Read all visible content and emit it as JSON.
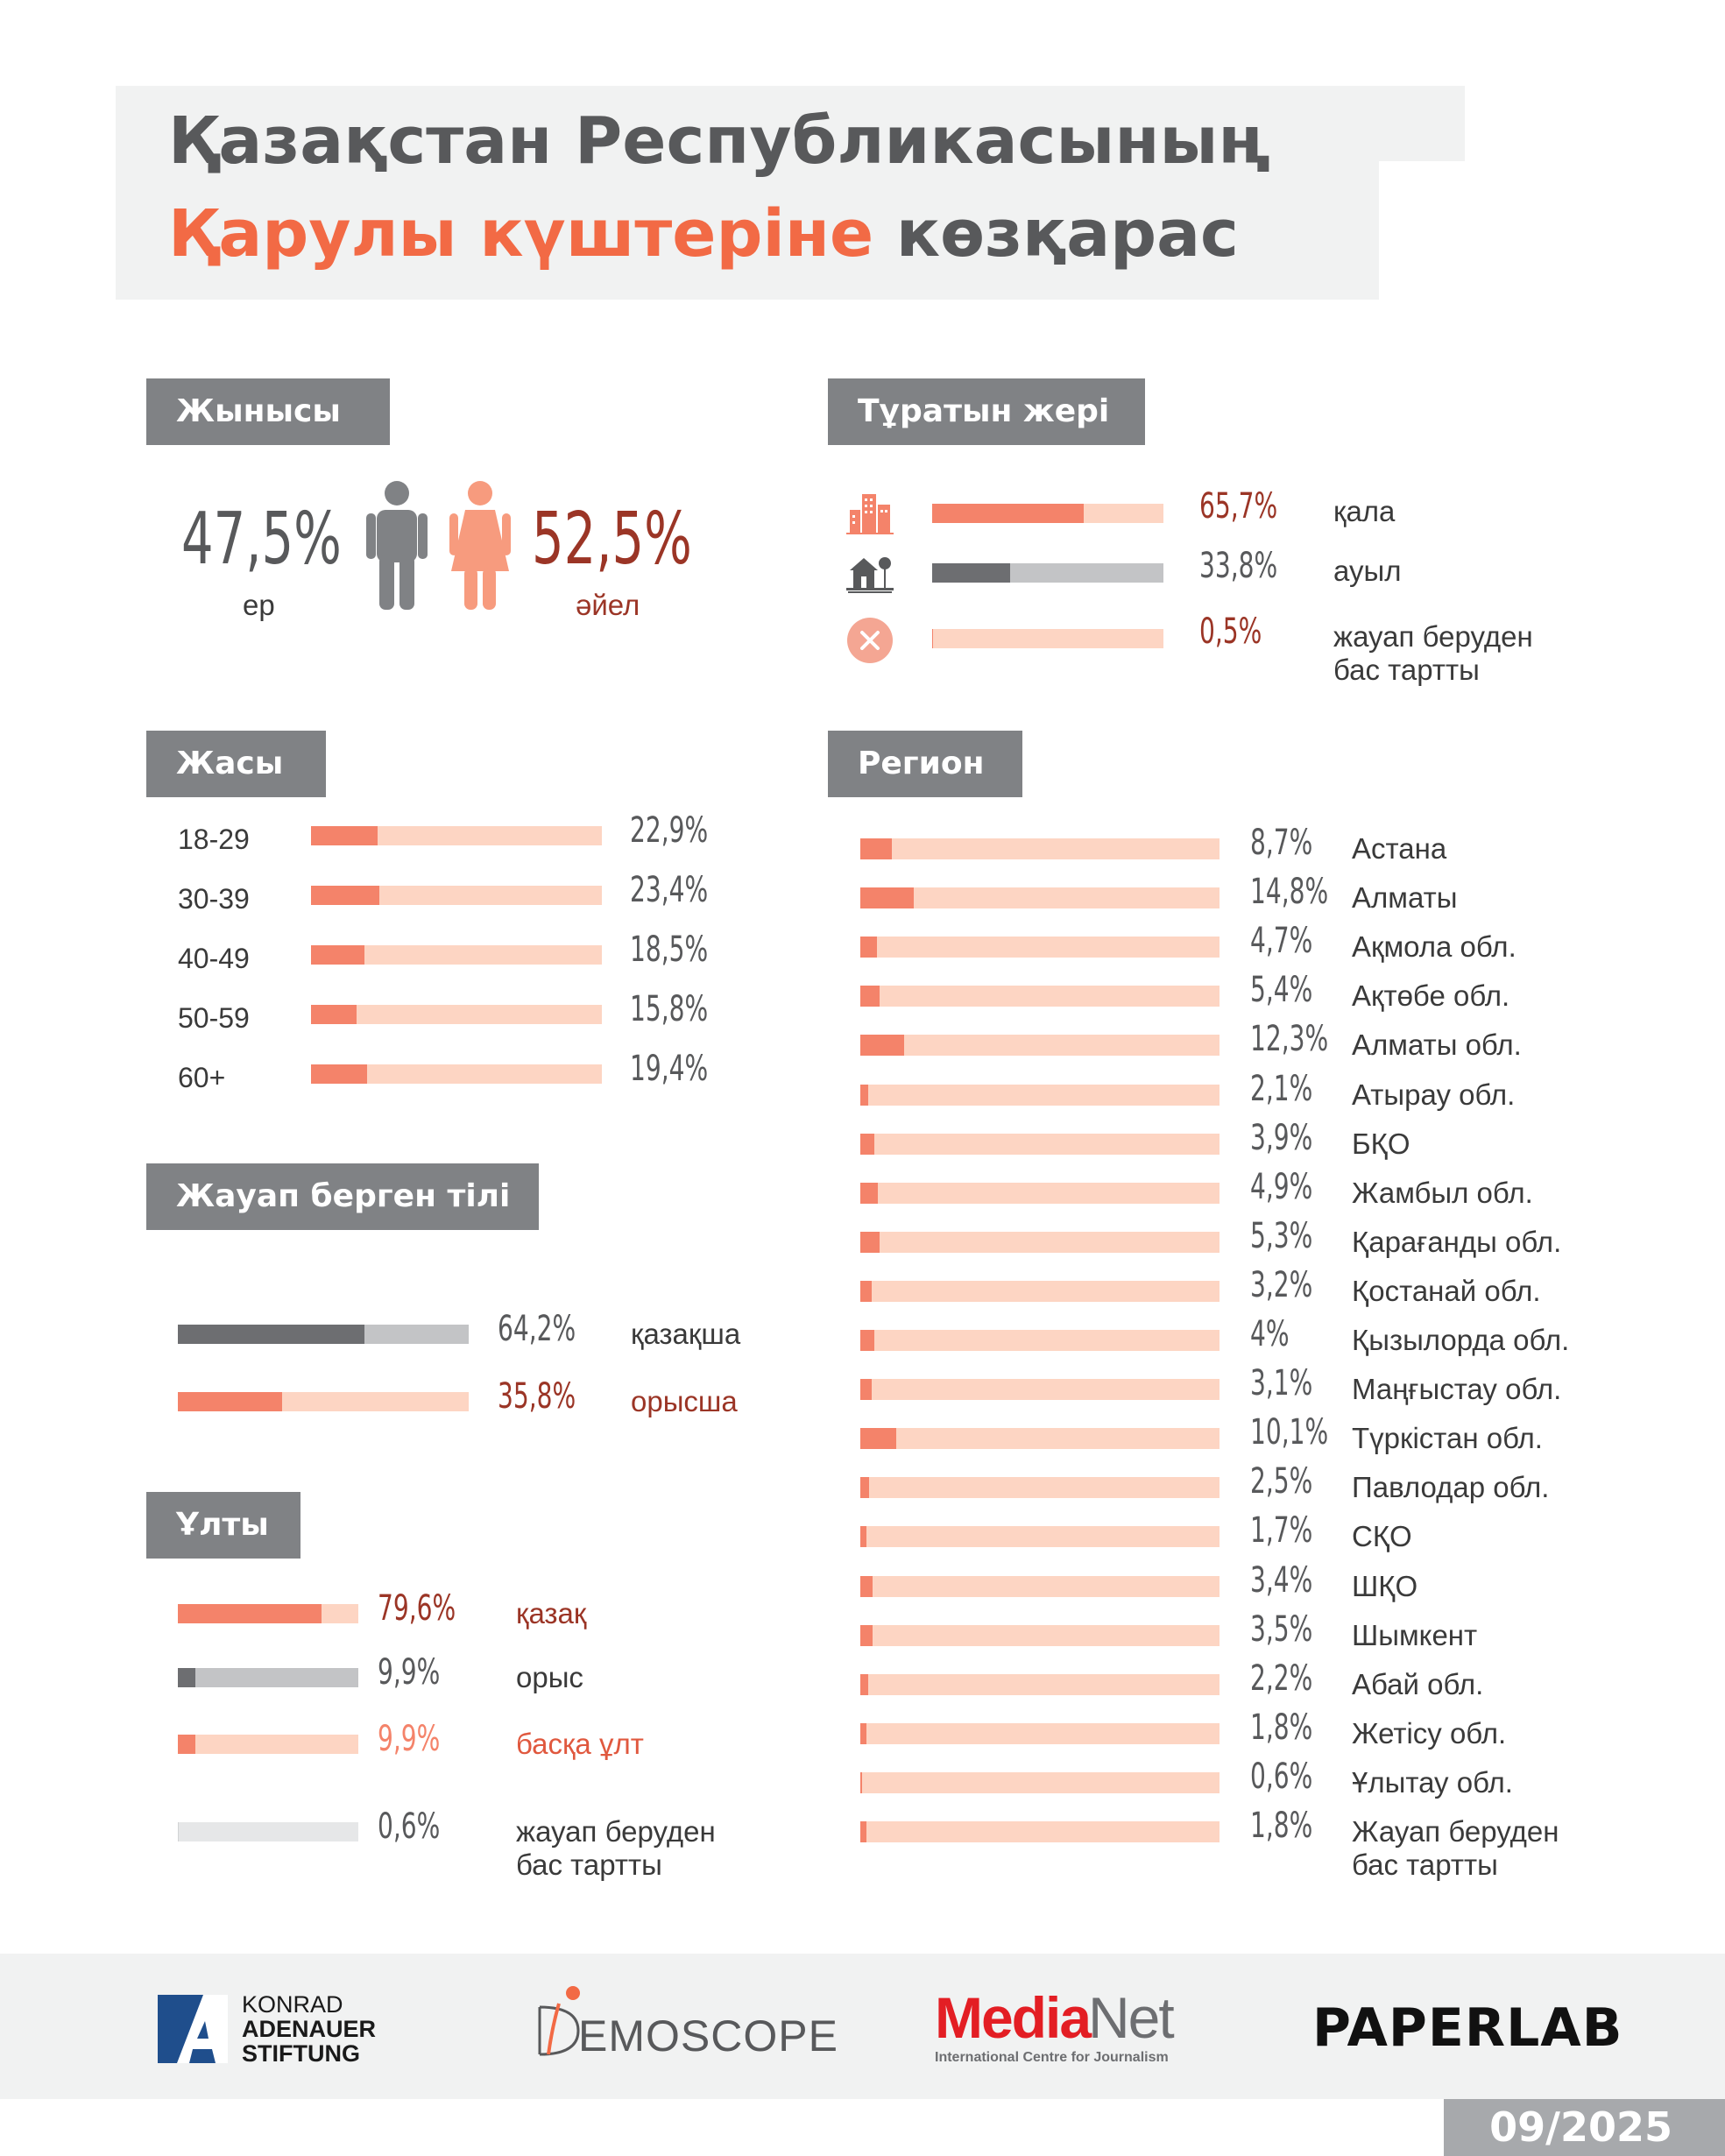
{
  "title": {
    "line1": "Қазақстан Республикасының",
    "line2_accent": "Қарулы күштеріне",
    "line2_rest": " көзқарас"
  },
  "colors": {
    "accent": "#f26a45",
    "salmon": "#f4836a",
    "light_salmon": "#fdd5c3",
    "grey": "#808285",
    "dark_red": "#9b3526"
  },
  "gender": {
    "header": "Жынысы",
    "male": {
      "pct": "47,5%",
      "label": "ер",
      "icon": "male-figure-icon"
    },
    "female": {
      "pct": "52,5%",
      "label": "әйел",
      "icon": "female-figure-icon"
    }
  },
  "residence": {
    "header": "Тұратын жері",
    "items": [
      {
        "pct": "65,7%",
        "label": "қала",
        "value": 65.7,
        "icon": "city-buildings-icon"
      },
      {
        "pct": "33,8%",
        "label": "ауыл",
        "value": 33.8,
        "icon": "village-house-icon"
      },
      {
        "pct": "0,5%",
        "label": "жауап беруден бас тартты",
        "value": 0.5,
        "icon": "refused-x-icon"
      }
    ]
  },
  "age": {
    "header": "Жасы",
    "items": [
      {
        "group": "18-29",
        "pct": "22,9%",
        "value": 22.9
      },
      {
        "group": "30-39",
        "pct": "23,4%",
        "value": 23.4
      },
      {
        "group": "40-49",
        "pct": "18,5%",
        "value": 18.5
      },
      {
        "group": "50-59",
        "pct": "15,8%",
        "value": 15.8
      },
      {
        "group": "60+",
        "pct": "19,4%",
        "value": 19.4
      }
    ]
  },
  "language": {
    "header": "Жауап берген тілі",
    "items": [
      {
        "pct": "64,2%",
        "label": "қазақша",
        "value": 64.2
      },
      {
        "pct": "35,8%",
        "label": "орысша",
        "value": 35.8
      }
    ]
  },
  "ethnicity": {
    "header": "Ұлты",
    "items": [
      {
        "pct": "79,6%",
        "label": "қазақ",
        "value": 79.6
      },
      {
        "pct": "9,9%",
        "label": "орыс",
        "value": 9.9
      },
      {
        "pct": "9,9%",
        "label": "басқа ұлт",
        "value": 9.9
      },
      {
        "pct": "0,6%",
        "label": "жауап беруден бас тартты",
        "value": 0.6
      }
    ]
  },
  "region": {
    "header": "Регион",
    "items": [
      {
        "pct": "8,7%",
        "label": "Астана",
        "value": 8.7
      },
      {
        "pct": "14,8%",
        "label": "Алматы",
        "value": 14.8
      },
      {
        "pct": "4,7%",
        "label": "Ақмола обл.",
        "value": 4.7
      },
      {
        "pct": "5,4%",
        "label": "Ақтөбе обл.",
        "value": 5.4
      },
      {
        "pct": "12,3%",
        "label": "Алматы обл.",
        "value": 12.3
      },
      {
        "pct": "2,1%",
        "label": "Атырау обл.",
        "value": 2.1
      },
      {
        "pct": "3,9%",
        "label": "БҚО",
        "value": 3.9
      },
      {
        "pct": "4,9%",
        "label": "Жамбыл обл.",
        "value": 4.9
      },
      {
        "pct": "5,3%",
        "label": "Қарағанды обл.",
        "value": 5.3
      },
      {
        "pct": "3,2%",
        "label": "Қостанай обл.",
        "value": 3.2
      },
      {
        "pct": "4%",
        "label": "Қызылорда обл.",
        "value": 4.0
      },
      {
        "pct": "3,1%",
        "label": "Маңғыстау обл.",
        "value": 3.1
      },
      {
        "pct": "10,1%",
        "label": "Түркістан обл.",
        "value": 10.1
      },
      {
        "pct": "2,5%",
        "label": "Павлодар обл.",
        "value": 2.5
      },
      {
        "pct": "1,7%",
        "label": "СҚО",
        "value": 1.7
      },
      {
        "pct": "3,4%",
        "label": "ШҚО",
        "value": 3.4
      },
      {
        "pct": "3,5%",
        "label": "Шымкент",
        "value": 3.5
      },
      {
        "pct": "2,2%",
        "label": "Абай обл.",
        "value": 2.2
      },
      {
        "pct": "1,8%",
        "label": "Жетісу обл.",
        "value": 1.8
      },
      {
        "pct": "0,6%",
        "label": "Ұлытау обл.",
        "value": 0.6
      },
      {
        "pct": "1,8%",
        "label": "Жауап беруден бас тартты",
        "value": 1.8
      }
    ]
  },
  "footer": {
    "kas": {
      "line1": "KONRAD",
      "line2": "ADENAUER",
      "line3": "STIFTUNG"
    },
    "demoscope": "EMOSCOPE",
    "medianet": {
      "media": "Media",
      "net": "Net",
      "sub": "International Centre for Journalism"
    },
    "paperlab": "PAPERLAB",
    "date": "09/2025"
  },
  "chart_data": [
    {
      "type": "bar",
      "categories": [
        "ер",
        "әйел"
      ],
      "values": [
        47.5,
        52.5
      ]
    },
    {
      "type": "bar",
      "categories": [
        "қала",
        "ауыл",
        "жауап беруден бас тартты"
      ],
      "values": [
        65.7,
        33.8,
        0.5
      ]
    },
    {
      "type": "bar",
      "categories": [
        "18-29",
        "30-39",
        "40-49",
        "50-59",
        "60+"
      ],
      "values": [
        22.9,
        23.4,
        18.5,
        15.8,
        19.4
      ]
    },
    {
      "type": "bar",
      "categories": [
        "қазақша",
        "орысша"
      ],
      "values": [
        64.2,
        35.8
      ]
    },
    {
      "type": "bar",
      "categories": [
        "қазақ",
        "орыс",
        "басқа ұлт",
        "жауап беруден бас тартты"
      ],
      "values": [
        79.6,
        9.9,
        9.9,
        0.6
      ]
    },
    {
      "type": "bar",
      "categories": [
        "Астана",
        "Алматы",
        "Ақмола обл.",
        "Ақтөбе обл.",
        "Алматы обл.",
        "Атырау обл.",
        "БҚО",
        "Жамбыл обл.",
        "Қарағанды обл.",
        "Қостанай обл.",
        "Қызылорда обл.",
        "Маңғыстау обл.",
        "Түркістан обл.",
        "Павлодар обл.",
        "СҚО",
        "ШҚО",
        "Шымкент",
        "Абай обл.",
        "Жетісу обл.",
        "Ұлытау обл.",
        "Жауап беруден бас тартты"
      ],
      "values": [
        8.7,
        14.8,
        4.7,
        5.4,
        12.3,
        2.1,
        3.9,
        4.9,
        5.3,
        3.2,
        4.0,
        3.1,
        10.1,
        2.5,
        1.7,
        3.4,
        3.5,
        2.2,
        1.8,
        0.6,
        1.8
      ]
    }
  ]
}
